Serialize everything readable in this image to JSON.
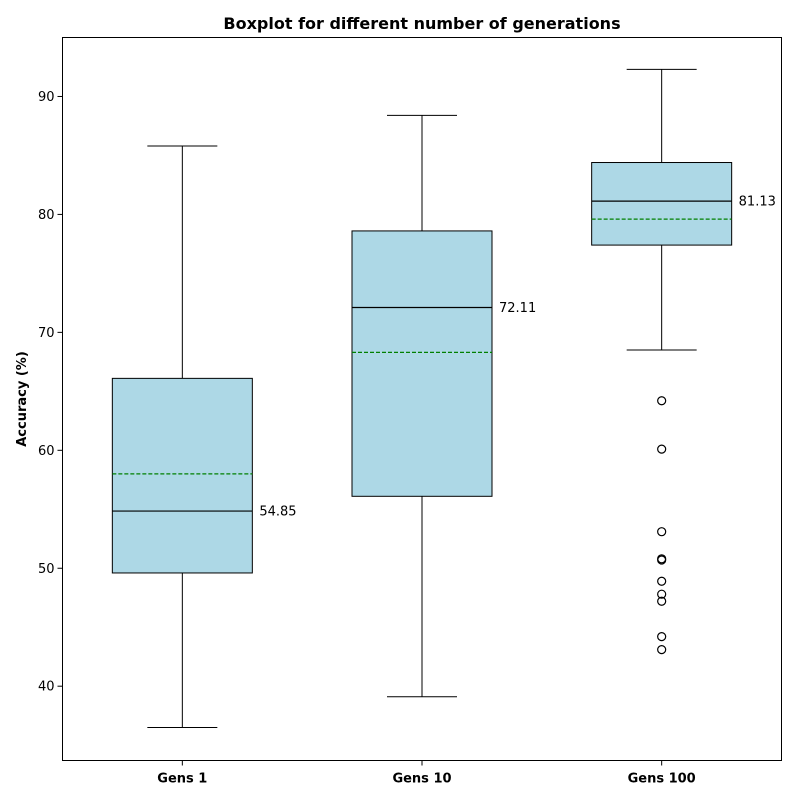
{
  "chart_data": {
    "type": "boxplot",
    "title": "Boxplot for different number of generations",
    "xlabel": "",
    "ylabel": "Accuracy (%)",
    "ylim": [
      33.7,
      95.0
    ],
    "yticks": [
      40,
      50,
      60,
      70,
      80,
      90
    ],
    "grid": false,
    "categories": [
      "Gens 1",
      "Gens 10",
      "Gens 100"
    ],
    "boxes": [
      {
        "whisker_low": 36.5,
        "q1": 49.6,
        "median": 54.85,
        "q3": 66.1,
        "whisker_high": 85.8,
        "mean": 58.0,
        "median_label": "54.85",
        "outliers": []
      },
      {
        "whisker_low": 39.1,
        "q1": 56.1,
        "median": 72.11,
        "q3": 78.6,
        "whisker_high": 88.4,
        "mean": 68.3,
        "median_label": "72.11",
        "outliers": []
      },
      {
        "whisker_low": 68.5,
        "q1": 77.4,
        "median": 81.13,
        "q3": 84.4,
        "whisker_high": 92.3,
        "mean": 79.6,
        "median_label": "81.13",
        "outliers": [
          64.2,
          60.1,
          53.1,
          50.8,
          50.7,
          48.9,
          47.8,
          47.2,
          44.2,
          43.1
        ]
      }
    ],
    "colors": {
      "box_fill": "#add8e6",
      "box_edge": "#000000",
      "mean_line": "#008000",
      "outlier_edge": "#000000"
    }
  }
}
